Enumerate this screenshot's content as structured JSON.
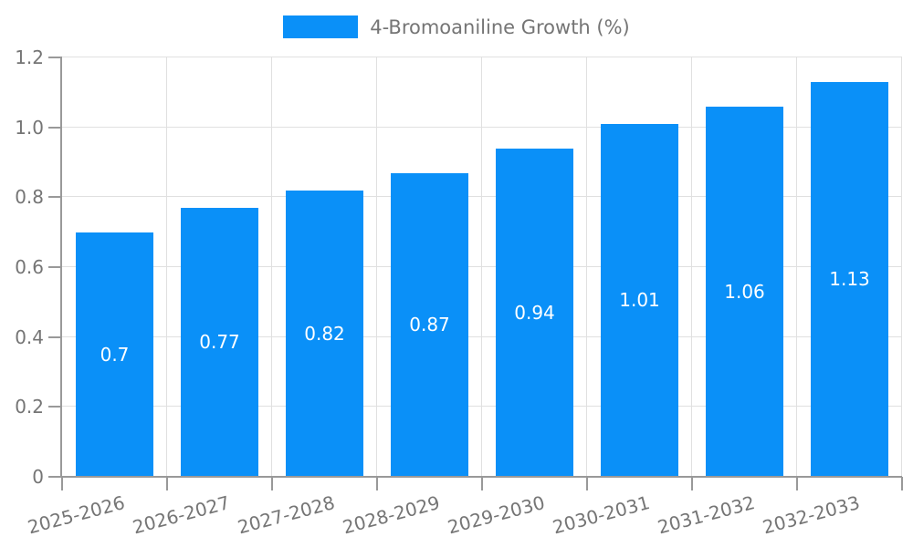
{
  "chart_data": {
    "type": "bar",
    "title": "",
    "legend_entries": [
      "4-Bromoaniline Growth (%)"
    ],
    "legend_position": "top-center",
    "categories": [
      "2025-2026",
      "2026-2027",
      "2027-2028",
      "2028-2029",
      "2029-2030",
      "2030-2031",
      "2031-2032",
      "2032-2033"
    ],
    "values": [
      0.7,
      0.77,
      0.82,
      0.87,
      0.94,
      1.01,
      1.06,
      1.13
    ],
    "value_labels": [
      "0.7",
      "0.77",
      "0.82",
      "0.87",
      "0.94",
      "1.01",
      "1.06",
      "1.13"
    ],
    "xlabel": "",
    "ylabel": "",
    "ylim": [
      0,
      1.2
    ],
    "ytick_labels": [
      "0",
      "0.2",
      "0.4",
      "0.6",
      "0.8",
      "1.0",
      "1.2"
    ],
    "x_label_rotation_deg": -15,
    "grid": true
  },
  "colors": {
    "bar": "#0a90f8",
    "axis": "#999999",
    "grid": "#e0e0e0",
    "tick_label": "#757575",
    "legend_text": "#757575",
    "value_label": "#ffffff",
    "background": "#ffffff"
  }
}
